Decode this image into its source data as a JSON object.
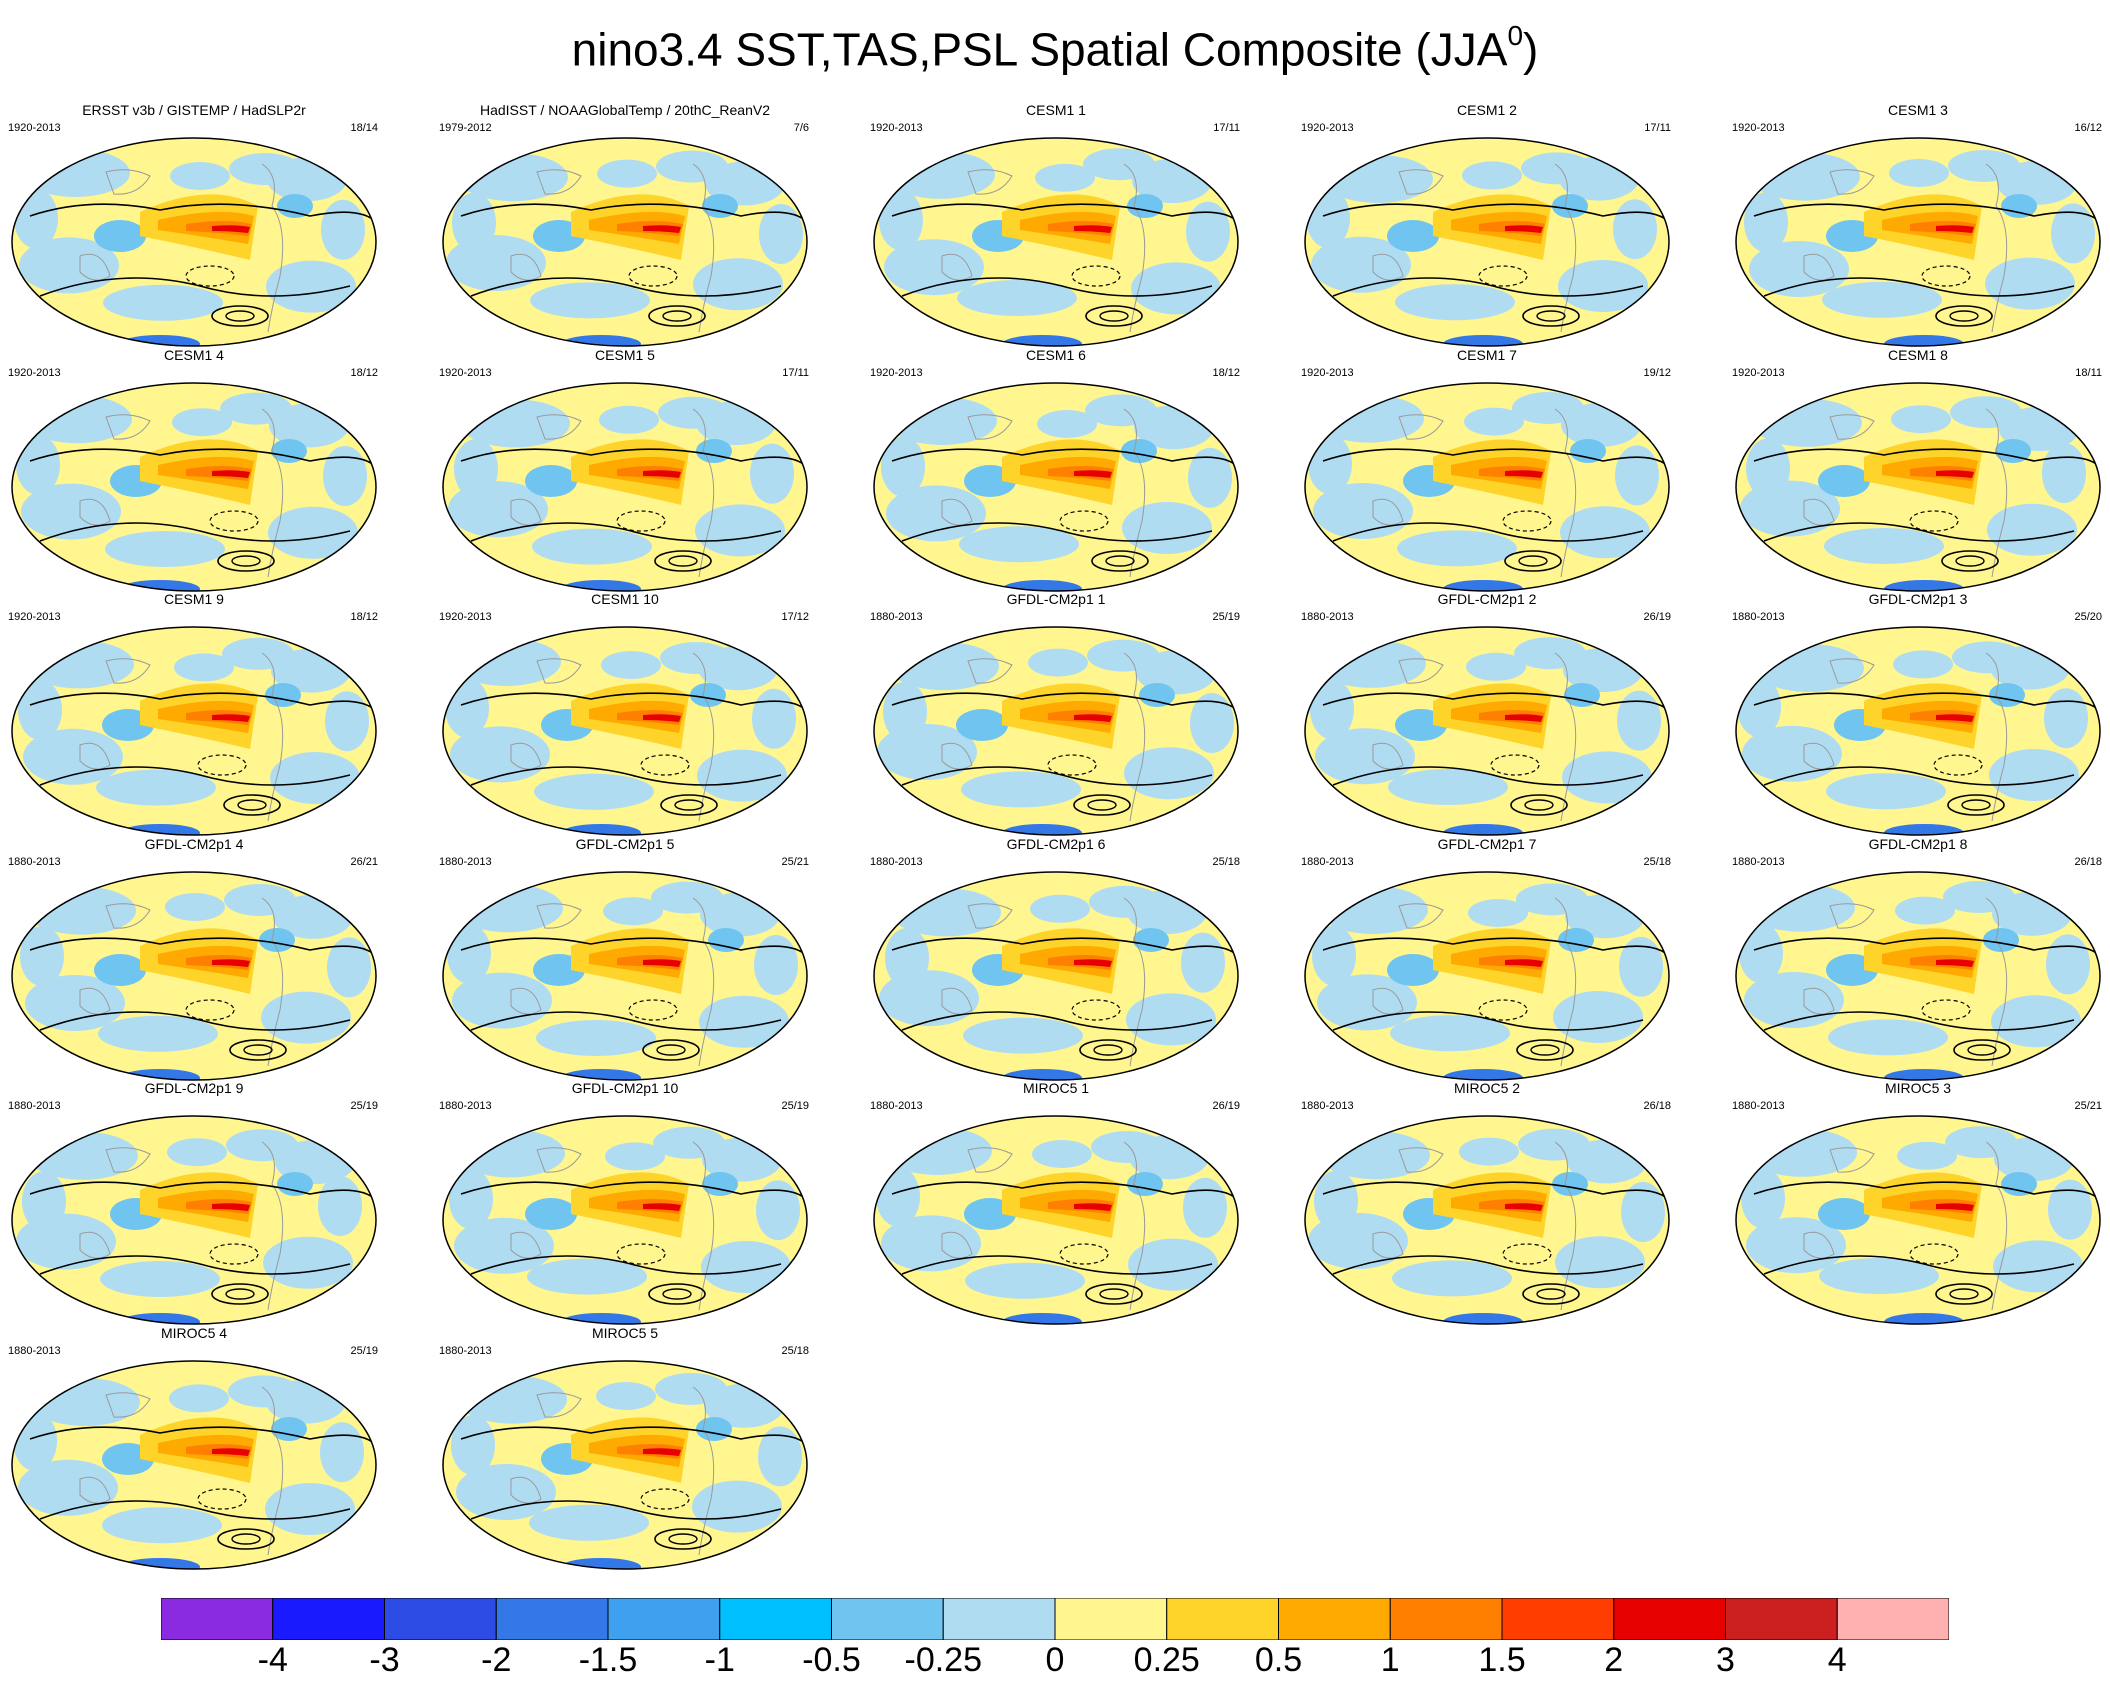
{
  "title": "nino3.4 SST,TAS,PSL Spatial Composite (JJA",
  "title_superscript": "0",
  "title_close": ")",
  "panels": [
    {
      "title": "ERSST v3b / GISTEMP / HadSLP2r",
      "years": "1920-2013",
      "count": "18/14"
    },
    {
      "title": "HadISST / NOAAGlobalTemp / 20thC_ReanV2",
      "years": "1979-2012",
      "count": "7/6"
    },
    {
      "title": "CESM1 1",
      "years": "1920-2013",
      "count": "17/11"
    },
    {
      "title": "CESM1 2",
      "years": "1920-2013",
      "count": "17/11"
    },
    {
      "title": "CESM1 3",
      "years": "1920-2013",
      "count": "16/12"
    },
    {
      "title": "CESM1 4",
      "years": "1920-2013",
      "count": "18/12"
    },
    {
      "title": "CESM1 5",
      "years": "1920-2013",
      "count": "17/11"
    },
    {
      "title": "CESM1 6",
      "years": "1920-2013",
      "count": "18/12"
    },
    {
      "title": "CESM1 7",
      "years": "1920-2013",
      "count": "19/12"
    },
    {
      "title": "CESM1 8",
      "years": "1920-2013",
      "count": "18/11"
    },
    {
      "title": "CESM1 9",
      "years": "1920-2013",
      "count": "18/12"
    },
    {
      "title": "CESM1 10",
      "years": "1920-2013",
      "count": "17/12"
    },
    {
      "title": "GFDL-CM2p1 1",
      "years": "1880-2013",
      "count": "25/19"
    },
    {
      "title": "GFDL-CM2p1 2",
      "years": "1880-2013",
      "count": "26/19"
    },
    {
      "title": "GFDL-CM2p1 3",
      "years": "1880-2013",
      "count": "25/20"
    },
    {
      "title": "GFDL-CM2p1 4",
      "years": "1880-2013",
      "count": "26/21"
    },
    {
      "title": "GFDL-CM2p1 5",
      "years": "1880-2013",
      "count": "25/21"
    },
    {
      "title": "GFDL-CM2p1 6",
      "years": "1880-2013",
      "count": "25/18"
    },
    {
      "title": "GFDL-CM2p1 7",
      "years": "1880-2013",
      "count": "25/18"
    },
    {
      "title": "GFDL-CM2p1 8",
      "years": "1880-2013",
      "count": "26/18"
    },
    {
      "title": "GFDL-CM2p1 9",
      "years": "1880-2013",
      "count": "25/19"
    },
    {
      "title": "GFDL-CM2p1 10",
      "years": "1880-2013",
      "count": "25/19"
    },
    {
      "title": "MIROC5 1",
      "years": "1880-2013",
      "count": "26/19"
    },
    {
      "title": "MIROC5 2",
      "years": "1880-2013",
      "count": "26/18"
    },
    {
      "title": "MIROC5 3",
      "years": "1880-2013",
      "count": "25/21"
    },
    {
      "title": "MIROC5 4",
      "years": "1880-2013",
      "count": "25/19"
    },
    {
      "title": "MIROC5 5",
      "years": "1880-2013",
      "count": "25/18"
    }
  ],
  "colorbar": {
    "colors": [
      "#8a2be2",
      "#1a1aff",
      "#2d4ce6",
      "#3478e8",
      "#3fa0f0",
      "#00bfff",
      "#70c4f0",
      "#b0dcf2",
      "#fff68f",
      "#ffd42a",
      "#ffaa00",
      "#ff7f00",
      "#ff3d00",
      "#e60000",
      "#cc1f1f",
      "#ffb0b0"
    ],
    "labels": [
      "-4",
      "-3",
      "-2",
      "-1.5",
      "-1",
      "-0.5",
      "-0.25",
      "0",
      "0.25",
      "0.5",
      "1",
      "1.5",
      "2",
      "3",
      "4"
    ]
  }
}
